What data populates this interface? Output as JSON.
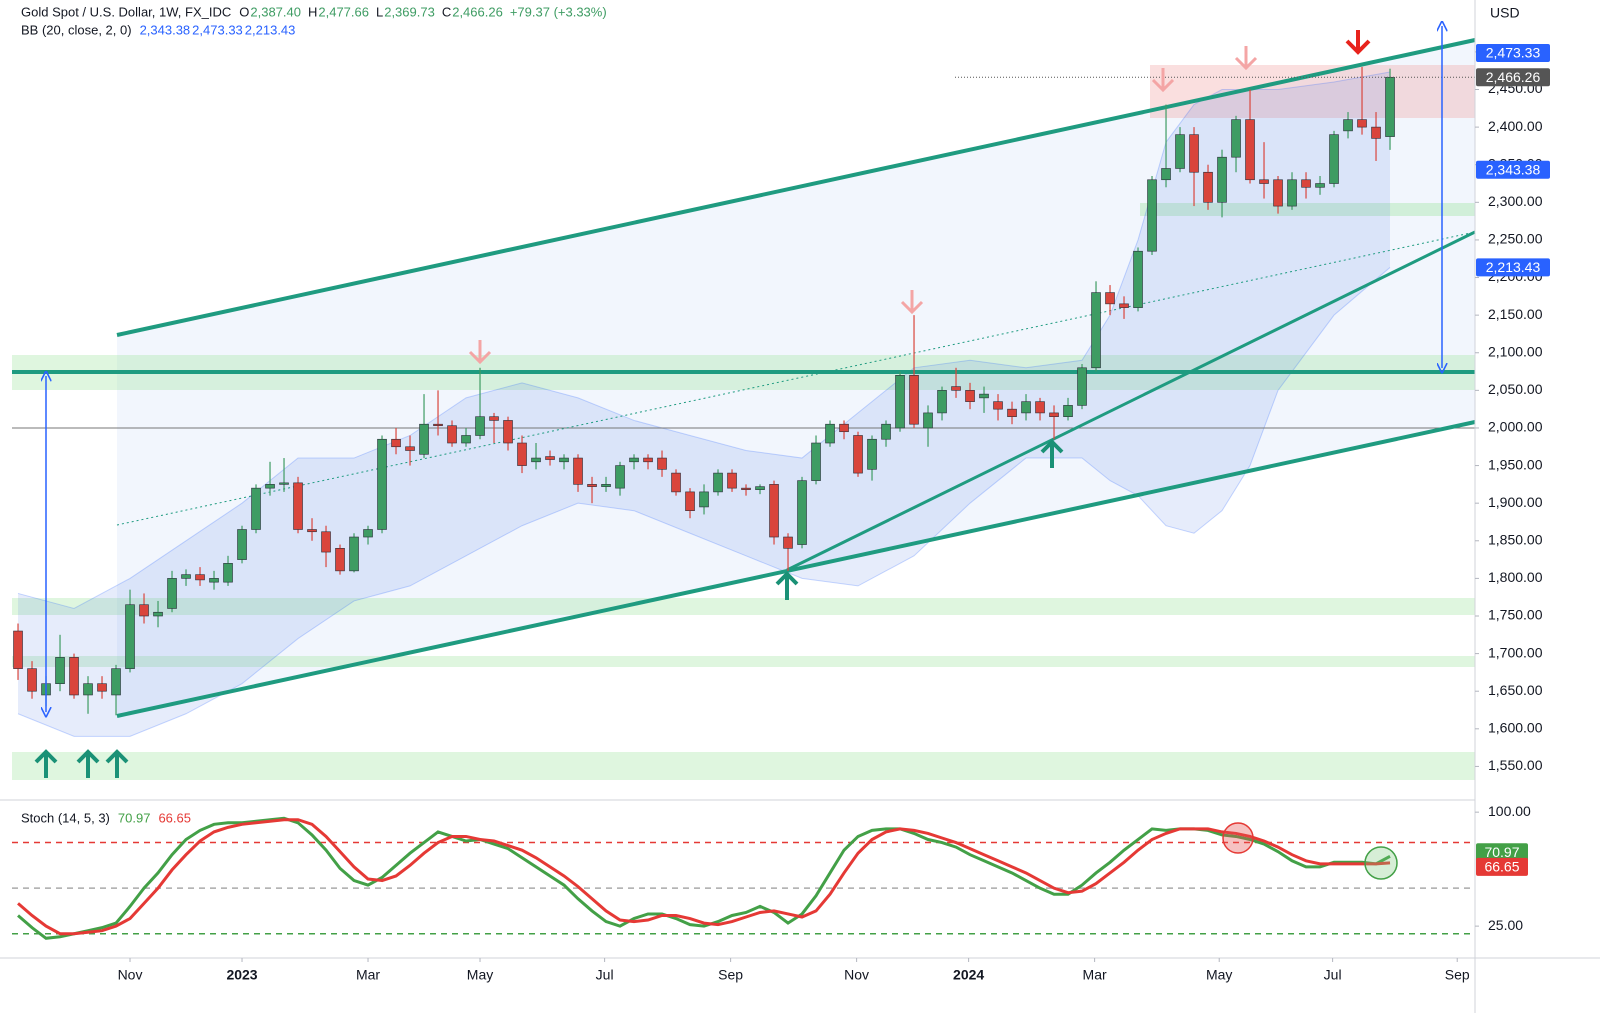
{
  "chart_data": {
    "type": "candlestick",
    "header": {
      "symbol": "Gold Spot / U.S. Dollar, 1W, FX_IDC",
      "ohlc": [
        {
          "label": "O",
          "value": "2,387.40"
        },
        {
          "label": "H",
          "value": "2,477.66"
        },
        {
          "label": "L",
          "value": "2,369.73"
        },
        {
          "label": "C",
          "value": "2,466.26"
        }
      ],
      "change": "+79.37 (+3.33%)"
    },
    "close_label": "2,466.26",
    "axis_currency": "USD",
    "up_color": "#3e9c63",
    "down_color": "#d9453c",
    "open": [
      1730,
      1680,
      1645,
      1660,
      1695,
      1645,
      1660,
      1645,
      1680,
      1765,
      1750,
      1760,
      1800,
      1805,
      1795,
      1795,
      1825,
      1865,
      1920,
      1925,
      1927,
      1865,
      1862,
      1840,
      1810,
      1855,
      1865,
      1985,
      1975,
      1965,
      2005,
      2003,
      1980,
      1990,
      2015,
      2010,
      1980,
      1955,
      1962,
      1955,
      1960,
      1925,
      1922,
      1920,
      1955,
      1960,
      1960,
      1940,
      1915,
      1895,
      1915,
      1940,
      1920,
      1918,
      1925,
      1855,
      1845,
      1930,
      1980,
      2005,
      1990,
      1945,
      1985,
      2000,
      2070,
      2000,
      2020,
      2055,
      2050,
      2040,
      2035,
      2025,
      2020,
      2035,
      2020,
      2015,
      2030,
      2080,
      2180,
      2165,
      2160,
      2235,
      2330,
      2345,
      2390,
      2340,
      2300,
      2360,
      2410,
      2330,
      2330,
      2295,
      2330,
      2320,
      2325,
      2395,
      2410,
      2400,
      2387.4
    ],
    "close": [
      1680,
      1650,
      1660,
      1695,
      1645,
      1660,
      1650,
      1680,
      1765,
      1750,
      1755,
      1800,
      1805,
      1798,
      1800,
      1820,
      1865,
      1920,
      1925,
      1927,
      1865,
      1862,
      1835,
      1810,
      1855,
      1865,
      1985,
      1975,
      1970,
      2005,
      2003,
      1980,
      1990,
      2015,
      2010,
      1980,
      1950,
      1960,
      1958,
      1960,
      1925,
      1922,
      1925,
      1950,
      1960,
      1955,
      1945,
      1915,
      1890,
      1915,
      1940,
      1920,
      1918,
      1922,
      1855,
      1840,
      1930,
      1980,
      2005,
      1995,
      1940,
      1985,
      2005,
      2070,
      2005,
      2020,
      2050,
      2050,
      2035,
      2045,
      2025,
      2015,
      2035,
      2020,
      2015,
      2030,
      2080,
      2180,
      2165,
      2160,
      2235,
      2330,
      2345,
      2390,
      2340,
      2300,
      2360,
      2410,
      2330,
      2325,
      2295,
      2330,
      2320,
      2325,
      2390,
      2410,
      2400,
      2385,
      2466.26
    ],
    "high": [
      1740,
      1690,
      1670,
      1725,
      1700,
      1670,
      1670,
      1685,
      1785,
      1780,
      1770,
      1810,
      1812,
      1815,
      1810,
      1830,
      1870,
      1925,
      1955,
      1960,
      1935,
      1880,
      1870,
      1845,
      1860,
      1870,
      1990,
      2000,
      1990,
      2045,
      2050,
      2010,
      2000,
      2080,
      2020,
      2015,
      1990,
      1980,
      1970,
      1965,
      1965,
      1935,
      1935,
      1955,
      1965,
      1965,
      1970,
      1945,
      1920,
      1925,
      1945,
      1945,
      1925,
      1925,
      1930,
      1860,
      1935,
      1990,
      2010,
      2010,
      1995,
      1990,
      2010,
      2075,
      2150,
      2030,
      2055,
      2080,
      2060,
      2055,
      2045,
      2035,
      2045,
      2040,
      2030,
      2040,
      2085,
      2195,
      2190,
      2175,
      2240,
      2335,
      2430,
      2400,
      2400,
      2350,
      2370,
      2415,
      2450,
      2380,
      2335,
      2340,
      2340,
      2335,
      2395,
      2420,
      2480,
      2420,
      2477.66
    ],
    "low": [
      1665,
      1640,
      1630,
      1650,
      1640,
      1620,
      1640,
      1618,
      1675,
      1740,
      1735,
      1755,
      1790,
      1790,
      1785,
      1790,
      1820,
      1860,
      1910,
      1915,
      1860,
      1850,
      1815,
      1805,
      1808,
      1845,
      1860,
      1965,
      1950,
      1960,
      1990,
      1975,
      1975,
      1985,
      1980,
      1970,
      1940,
      1945,
      1950,
      1945,
      1915,
      1900,
      1915,
      1910,
      1945,
      1945,
      1935,
      1910,
      1880,
      1885,
      1910,
      1915,
      1910,
      1912,
      1845,
      1810,
      1840,
      1925,
      1975,
      1985,
      1935,
      1930,
      1975,
      1995,
      2000,
      1975,
      2010,
      2040,
      2025,
      2020,
      2010,
      2005,
      2010,
      2010,
      1985,
      2010,
      2025,
      2075,
      2150,
      2145,
      2155,
      2230,
      2320,
      2340,
      2295,
      2290,
      2280,
      2340,
      2325,
      2305,
      2285,
      2290,
      2305,
      2310,
      2320,
      2385,
      2390,
      2355,
      2369.73
    ],
    "xlim": [
      -0.43,
      104.07
    ],
    "xticks": [
      {
        "value": 8.0,
        "label": "Nov"
      },
      {
        "value": 16.0,
        "label": "2023"
      },
      {
        "value": 25.0,
        "label": "Mar"
      },
      {
        "value": 33.0,
        "label": "May"
      },
      {
        "value": 41.9,
        "label": "Jul"
      },
      {
        "value": 50.9,
        "label": "Sep"
      },
      {
        "value": 59.9,
        "label": "Nov"
      },
      {
        "value": 67.9,
        "label": "2024"
      },
      {
        "value": 76.9,
        "label": "Mar"
      },
      {
        "value": 85.8,
        "label": "May"
      },
      {
        "value": 93.9,
        "label": "Jul"
      },
      {
        "value": 102.8,
        "label": "Sep"
      }
    ],
    "ylim": [
      1512,
      2569
    ],
    "yticks": [
      {
        "value": 1550,
        "label": "1,550.00"
      },
      {
        "value": 1600,
        "label": "1,600.00"
      },
      {
        "value": 1650,
        "label": "1,650.00"
      },
      {
        "value": 1700,
        "label": "1,700.00"
      },
      {
        "value": 1750,
        "label": "1,750.00"
      },
      {
        "value": 1800,
        "label": "1,800.00"
      },
      {
        "value": 1850,
        "label": "1,850.00"
      },
      {
        "value": 1900,
        "label": "1,900.00"
      },
      {
        "value": 1950,
        "label": "1,950.00"
      },
      {
        "value": 2000,
        "label": "2,000.00"
      },
      {
        "value": 2050,
        "label": "2,050.00"
      },
      {
        "value": 2100,
        "label": "2,100.00"
      },
      {
        "value": 2150,
        "label": "2,150.00"
      },
      {
        "value": 2200,
        "label": "2,200.00"
      },
      {
        "value": 2250,
        "label": "2,250.00"
      },
      {
        "value": 2300,
        "label": "2,300.00"
      },
      {
        "value": 2350,
        "label": "2,350.00"
      },
      {
        "value": 2400,
        "label": "2,400.00"
      },
      {
        "value": 2450,
        "label": "2,450.00"
      },
      {
        "value": 2500,
        "label": "2,500.00"
      }
    ],
    "grid": false,
    "bollinger": {
      "name": "BB (20, close, 2, 0)",
      "color": "#2962ff",
      "basis": 2343.38,
      "upper_last": 2473.33,
      "lower_last": 2213.43,
      "value_labels": [
        "2,343.38",
        "2,473.33",
        "2,213.43"
      ],
      "x": [
        0,
        4,
        8,
        12,
        16,
        20,
        24,
        28,
        32,
        36,
        40,
        44,
        48,
        52,
        56,
        60,
        64,
        68,
        72,
        76,
        78,
        80,
        82,
        84,
        86,
        88,
        90,
        94,
        98
      ],
      "upper": [
        1780,
        1760,
        1800,
        1850,
        1900,
        1960,
        1960,
        1990,
        2040,
        2060,
        2040,
        2010,
        1990,
        1970,
        1960,
        2020,
        2080,
        2090,
        2080,
        2090,
        2150,
        2250,
        2380,
        2430,
        2450,
        2450,
        2450,
        2460,
        2473.33
      ],
      "lower": [
        1620,
        1590,
        1590,
        1620,
        1660,
        1720,
        1770,
        1790,
        1830,
        1870,
        1900,
        1890,
        1860,
        1830,
        1800,
        1790,
        1830,
        1900,
        1960,
        1960,
        1930,
        1910,
        1870,
        1860,
        1890,
        1950,
        2050,
        2150,
        2213.43
      ]
    },
    "stochastic": {
      "name": "Stoch (14, 5, 3)",
      "ylim": [
        6,
        108
      ],
      "yticks": [
        {
          "value": 100,
          "label": "100.00"
        },
        {
          "value": 25,
          "label": "25.00"
        }
      ],
      "levels": [
        {
          "value": 80,
          "color": "#e53935"
        },
        {
          "value": 50,
          "color": "#aaaaaa"
        },
        {
          "value": 20,
          "color": "#43a047"
        }
      ],
      "series": [
        {
          "name": "%K",
          "color": "#43a047",
          "value_label": "70.97",
          "values": [
            32,
            24,
            17,
            18,
            20,
            22,
            24,
            27,
            38,
            50,
            60,
            72,
            82,
            88,
            92,
            93,
            93,
            94,
            95,
            96,
            93,
            85,
            75,
            63,
            55,
            52,
            57,
            65,
            73,
            80,
            87,
            84,
            81,
            82,
            79,
            76,
            70,
            64,
            58,
            52,
            43,
            35,
            28,
            25,
            30,
            33,
            33,
            30,
            26,
            25,
            28,
            32,
            34,
            38,
            34,
            27,
            33,
            45,
            60,
            75,
            84,
            88,
            89,
            89,
            86,
            82,
            80,
            77,
            72,
            68,
            64,
            60,
            55,
            50,
            46,
            46,
            52,
            60,
            67,
            75,
            82,
            89,
            88,
            89,
            89,
            88,
            85,
            84,
            82,
            79,
            74,
            68,
            64,
            64,
            67,
            67,
            67,
            66,
            70.97
          ]
        },
        {
          "name": "%D",
          "color": "#e53935",
          "value_label": "66.65",
          "values": [
            40,
            32,
            25,
            20,
            20,
            21,
            22,
            25,
            30,
            40,
            50,
            62,
            72,
            81,
            87,
            90,
            92,
            93,
            94,
            95,
            95,
            92,
            84,
            74,
            64,
            56,
            55,
            58,
            65,
            73,
            80,
            84,
            84,
            82,
            81,
            78,
            75,
            70,
            64,
            58,
            51,
            43,
            35,
            29,
            28,
            29,
            32,
            32,
            30,
            27,
            26,
            28,
            31,
            34,
            35,
            33,
            31,
            35,
            46,
            60,
            73,
            82,
            87,
            89,
            88,
            86,
            83,
            80,
            76,
            72,
            68,
            64,
            60,
            55,
            50,
            47,
            48,
            53,
            60,
            67,
            75,
            82,
            86,
            89,
            89,
            89,
            87,
            86,
            84,
            81,
            77,
            72,
            68,
            66,
            66,
            66,
            66,
            66,
            66.65
          ]
        }
      ]
    }
  }
}
